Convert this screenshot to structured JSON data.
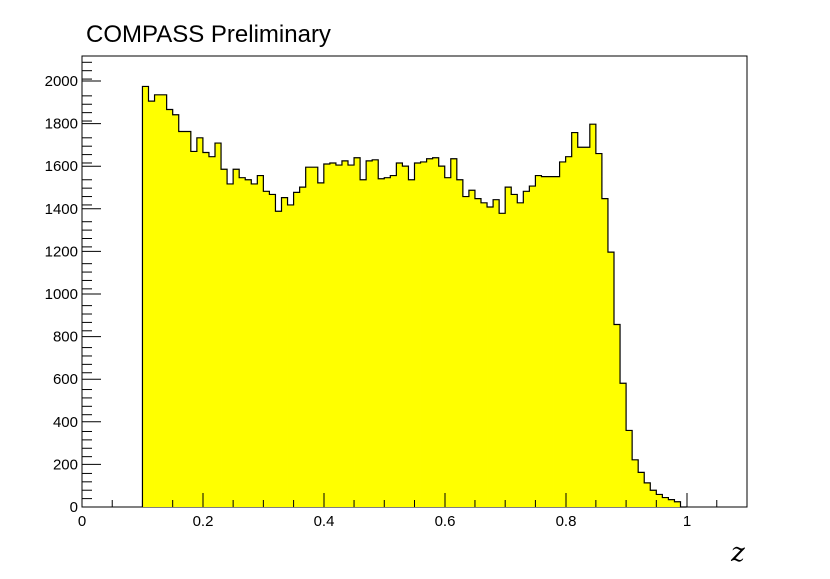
{
  "chart_data": {
    "type": "histogram",
    "title": "COMPASS Preliminary",
    "xlabel": "z",
    "ylabel": "",
    "xlim": [
      0,
      1.1
    ],
    "ylim": [
      0,
      2150
    ],
    "bin_width": 0.01,
    "x_ticks": [
      {
        "value": 0,
        "label": "0"
      },
      {
        "value": 0.2,
        "label": "0.2"
      },
      {
        "value": 0.4,
        "label": "0.4"
      },
      {
        "value": 0.6,
        "label": "0.6"
      },
      {
        "value": 0.8,
        "label": "0.8"
      },
      {
        "value": 1,
        "label": "1"
      }
    ],
    "y_ticks": [
      {
        "value": 0,
        "label": "0"
      },
      {
        "value": 200,
        "label": "200"
      },
      {
        "value": 400,
        "label": "400"
      },
      {
        "value": 600,
        "label": "600"
      },
      {
        "value": 800,
        "label": "800"
      },
      {
        "value": 1000,
        "label": "1000"
      },
      {
        "value": 1200,
        "label": "1200"
      },
      {
        "value": 1400,
        "label": "1400"
      },
      {
        "value": 1600,
        "label": "1600"
      },
      {
        "value": 1800,
        "label": "1800"
      },
      {
        "value": 2000,
        "label": "2000"
      }
    ],
    "fill_color": "#ffff00",
    "line_color": "#000000",
    "bins": [
      {
        "x": 0.1,
        "y": 2005
      },
      {
        "x": 0.11,
        "y": 1935
      },
      {
        "x": 0.12,
        "y": 1965
      },
      {
        "x": 0.13,
        "y": 1965
      },
      {
        "x": 0.14,
        "y": 1895
      },
      {
        "x": 0.15,
        "y": 1870
      },
      {
        "x": 0.16,
        "y": 1790
      },
      {
        "x": 0.17,
        "y": 1790
      },
      {
        "x": 0.18,
        "y": 1695
      },
      {
        "x": 0.19,
        "y": 1760
      },
      {
        "x": 0.2,
        "y": 1690
      },
      {
        "x": 0.21,
        "y": 1670
      },
      {
        "x": 0.22,
        "y": 1735
      },
      {
        "x": 0.23,
        "y": 1610
      },
      {
        "x": 0.24,
        "y": 1540
      },
      {
        "x": 0.25,
        "y": 1610
      },
      {
        "x": 0.26,
        "y": 1570
      },
      {
        "x": 0.27,
        "y": 1560
      },
      {
        "x": 0.28,
        "y": 1540
      },
      {
        "x": 0.29,
        "y": 1580
      },
      {
        "x": 0.3,
        "y": 1505
      },
      {
        "x": 0.31,
        "y": 1490
      },
      {
        "x": 0.32,
        "y": 1410
      },
      {
        "x": 0.33,
        "y": 1475
      },
      {
        "x": 0.34,
        "y": 1440
      },
      {
        "x": 0.35,
        "y": 1500
      },
      {
        "x": 0.36,
        "y": 1525
      },
      {
        "x": 0.37,
        "y": 1620
      },
      {
        "x": 0.38,
        "y": 1620
      },
      {
        "x": 0.39,
        "y": 1545
      },
      {
        "x": 0.4,
        "y": 1635
      },
      {
        "x": 0.41,
        "y": 1640
      },
      {
        "x": 0.42,
        "y": 1630
      },
      {
        "x": 0.43,
        "y": 1650
      },
      {
        "x": 0.44,
        "y": 1630
      },
      {
        "x": 0.45,
        "y": 1665
      },
      {
        "x": 0.46,
        "y": 1560
      },
      {
        "x": 0.47,
        "y": 1650
      },
      {
        "x": 0.48,
        "y": 1655
      },
      {
        "x": 0.49,
        "y": 1565
      },
      {
        "x": 0.5,
        "y": 1570
      },
      {
        "x": 0.51,
        "y": 1580
      },
      {
        "x": 0.52,
        "y": 1640
      },
      {
        "x": 0.53,
        "y": 1625
      },
      {
        "x": 0.54,
        "y": 1560
      },
      {
        "x": 0.55,
        "y": 1640
      },
      {
        "x": 0.56,
        "y": 1645
      },
      {
        "x": 0.57,
        "y": 1660
      },
      {
        "x": 0.58,
        "y": 1665
      },
      {
        "x": 0.59,
        "y": 1625
      },
      {
        "x": 0.6,
        "y": 1570
      },
      {
        "x": 0.61,
        "y": 1660
      },
      {
        "x": 0.62,
        "y": 1560
      },
      {
        "x": 0.63,
        "y": 1480
      },
      {
        "x": 0.64,
        "y": 1510
      },
      {
        "x": 0.65,
        "y": 1470
      },
      {
        "x": 0.66,
        "y": 1450
      },
      {
        "x": 0.67,
        "y": 1430
      },
      {
        "x": 0.68,
        "y": 1465
      },
      {
        "x": 0.69,
        "y": 1400
      },
      {
        "x": 0.7,
        "y": 1525
      },
      {
        "x": 0.71,
        "y": 1490
      },
      {
        "x": 0.72,
        "y": 1450
      },
      {
        "x": 0.73,
        "y": 1505
      },
      {
        "x": 0.74,
        "y": 1530
      },
      {
        "x": 0.75,
        "y": 1580
      },
      {
        "x": 0.76,
        "y": 1575
      },
      {
        "x": 0.77,
        "y": 1575
      },
      {
        "x": 0.78,
        "y": 1575
      },
      {
        "x": 0.79,
        "y": 1645
      },
      {
        "x": 0.8,
        "y": 1670
      },
      {
        "x": 0.81,
        "y": 1785
      },
      {
        "x": 0.82,
        "y": 1715
      },
      {
        "x": 0.83,
        "y": 1715
      },
      {
        "x": 0.84,
        "y": 1825
      },
      {
        "x": 0.85,
        "y": 1685
      },
      {
        "x": 0.86,
        "y": 1470
      },
      {
        "x": 0.87,
        "y": 1215
      },
      {
        "x": 0.88,
        "y": 870
      },
      {
        "x": 0.89,
        "y": 590
      },
      {
        "x": 0.9,
        "y": 365
      },
      {
        "x": 0.91,
        "y": 225
      },
      {
        "x": 0.92,
        "y": 165
      },
      {
        "x": 0.93,
        "y": 115
      },
      {
        "x": 0.94,
        "y": 80
      },
      {
        "x": 0.95,
        "y": 60
      },
      {
        "x": 0.96,
        "y": 45
      },
      {
        "x": 0.97,
        "y": 35
      },
      {
        "x": 0.98,
        "y": 25
      },
      {
        "x": 0.99,
        "y": 0
      }
    ]
  }
}
